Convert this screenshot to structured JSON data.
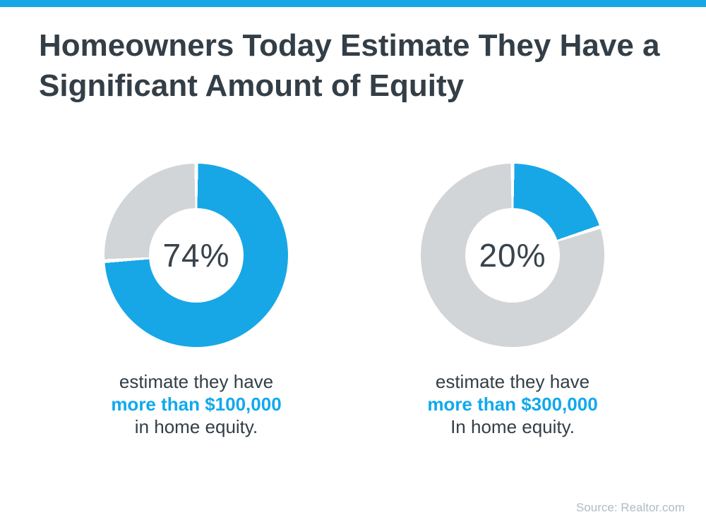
{
  "header": {
    "title_line1": "Homeowners Today Estimate They Have a",
    "title_line2": "Significant Amount of Equity"
  },
  "source": "Source: Realtor.com",
  "colors": {
    "accent_blue": "#17a7e6",
    "caption_blue": "#0fa9ec",
    "empty_gray": "#d2d5d7",
    "dark_text": "#333e47",
    "source_gray": "#aebcc5"
  },
  "chart_data": {
    "type": "pie",
    "subtype": "donut",
    "title": "Homeowners Today Estimate They Have a Significant Amount of Equity",
    "legend": "none",
    "charts": [
      {
        "center_label": "74%",
        "value": 74,
        "remainder": 26,
        "segment_color": "#17a7e6",
        "remainder_color": "#d2d5d7",
        "caption_line1": "estimate they have",
        "caption_line2": "more than $100,000",
        "caption_line3": "in home equity."
      },
      {
        "center_label": "20%",
        "value": 20,
        "remainder": 80,
        "segment_color": "#17a7e6",
        "remainder_color": "#d2d5d7",
        "caption_line1": "estimate they have",
        "caption_line2": "more than $300,000",
        "caption_line3": "In home equity."
      }
    ]
  }
}
